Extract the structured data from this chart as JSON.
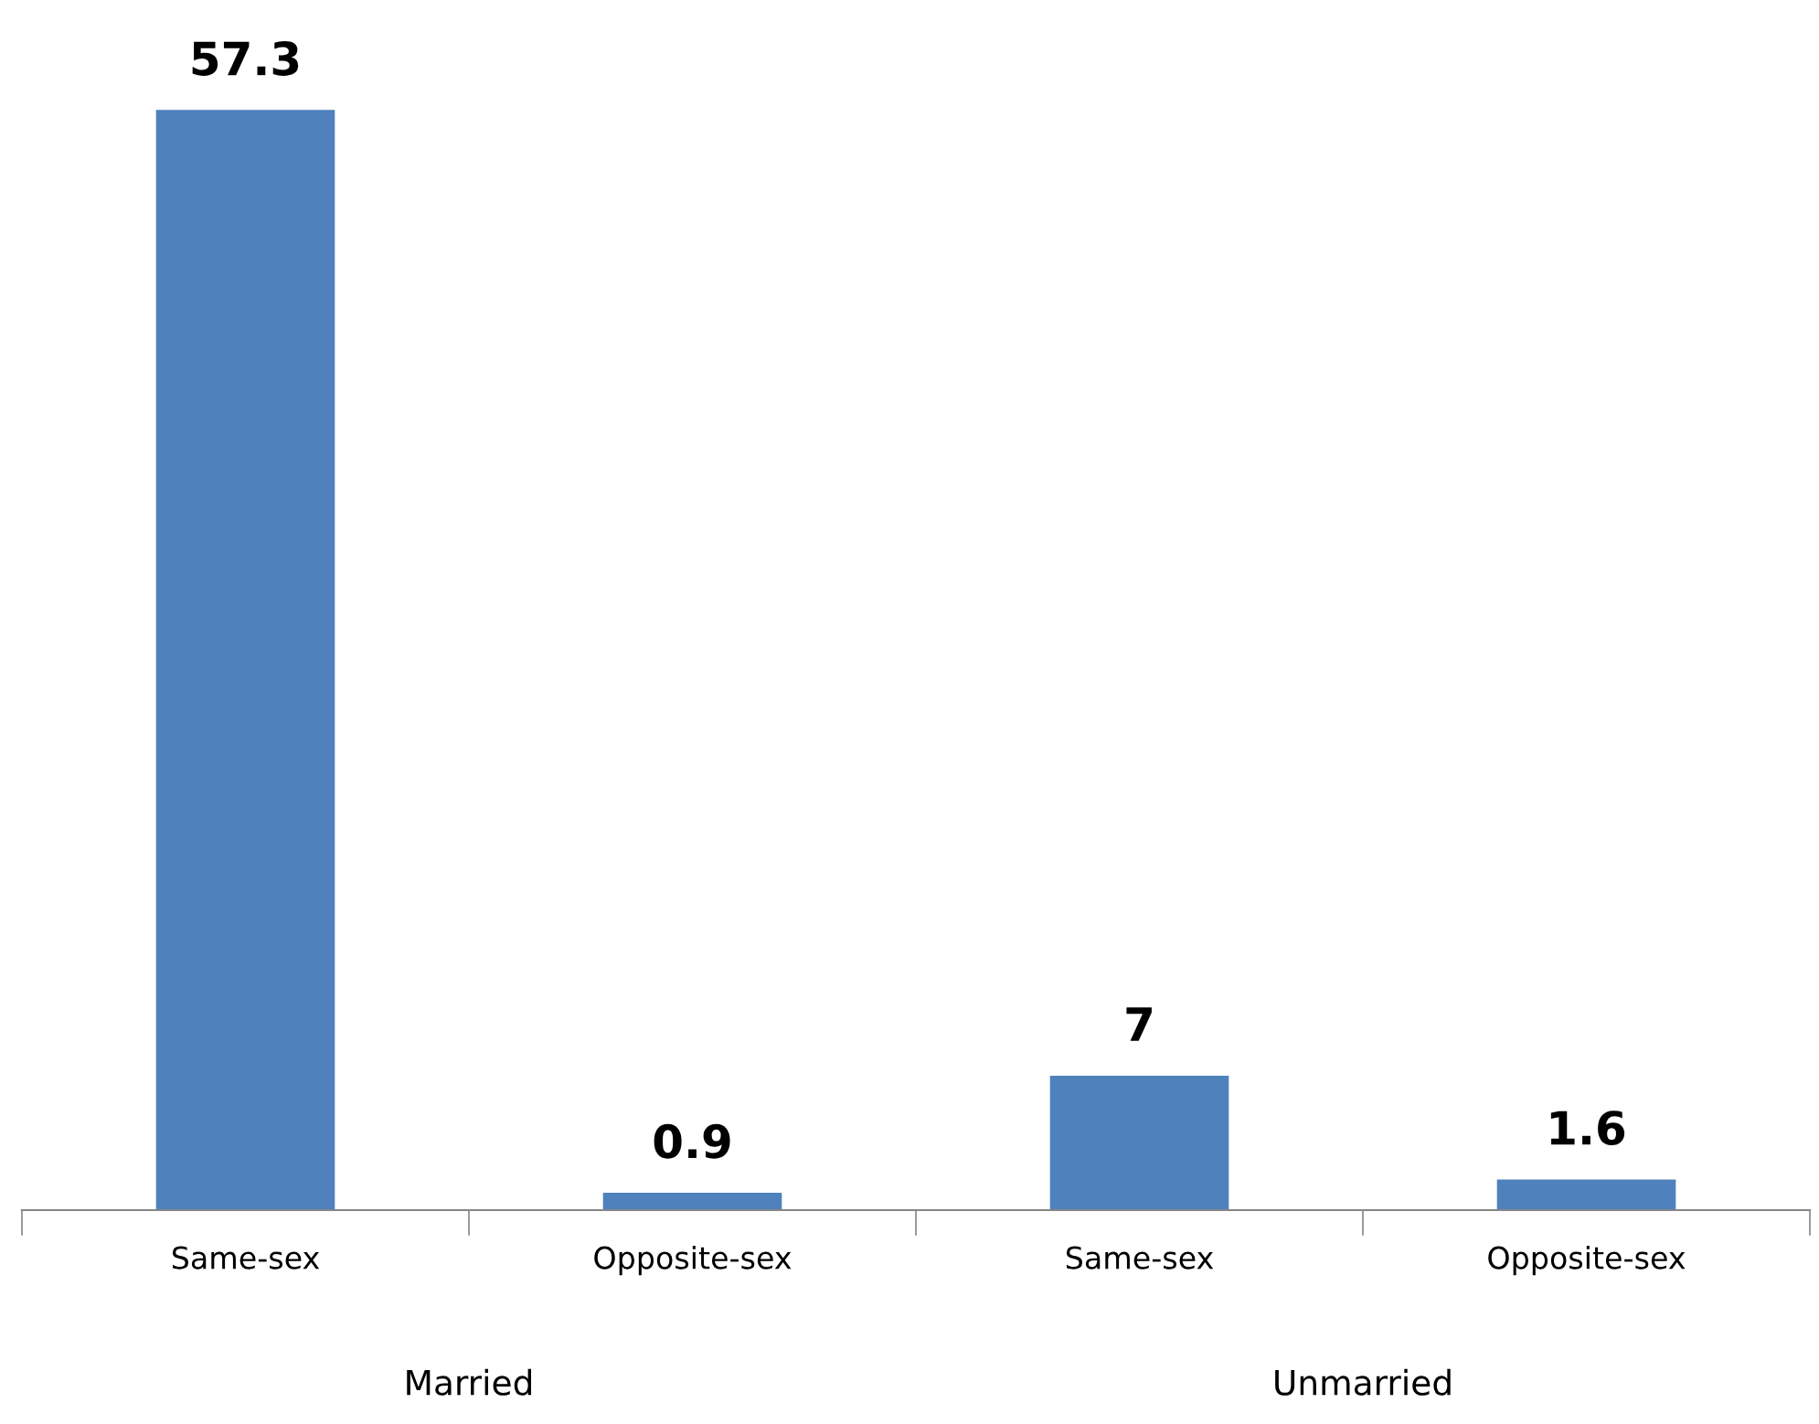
{
  "chart_data": {
    "type": "bar",
    "categories": [
      "Same-sex",
      "Opposite-sex",
      "Same-sex",
      "Opposite-sex"
    ],
    "values": [
      57.3,
      0.9,
      7,
      1.6
    ],
    "color": "#4f81bd",
    "data_labels": true,
    "grid": false,
    "annotations": [
      "Married",
      "Unmarried"
    ]
  }
}
